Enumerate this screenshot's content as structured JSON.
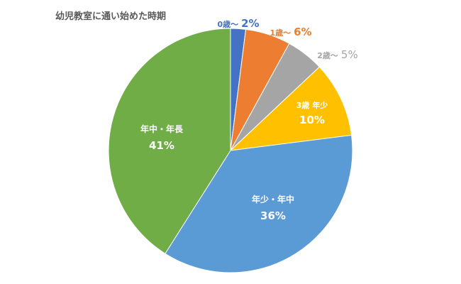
{
  "chart_data": {
    "type": "pie",
    "title": "幼児教室に通い始めた時期",
    "start_angle_deg": 0,
    "direction": "clockwise",
    "slices": [
      {
        "label": "0歳〜",
        "value_label": "2%",
        "value": 2,
        "color": "#4472C4",
        "label_color": "#4472C4"
      },
      {
        "label": "1歳〜",
        "value_label": "6%",
        "value": 6,
        "color": "#ED7D31",
        "label_color": "#ED7D31"
      },
      {
        "label": "2歳〜",
        "value_label": "5%",
        "value": 5,
        "color": "#A5A5A5",
        "label_color": "#A5A5A5"
      },
      {
        "label": "3歳 年少",
        "value_label": "10%",
        "value": 10,
        "color": "#FFC000",
        "label_color": "#ffffff"
      },
      {
        "label": "年少・年中",
        "value_label": "36%",
        "value": 36,
        "color": "#5B9BD5",
        "label_color": "#ffffff"
      },
      {
        "label": "年中・年長",
        "value_label": "41%",
        "value": 41,
        "color": "#70AD47",
        "label_color": "#ffffff"
      }
    ]
  }
}
